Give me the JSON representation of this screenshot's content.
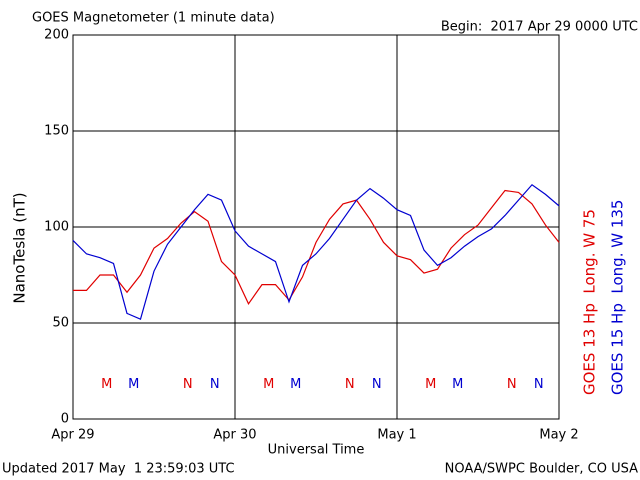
{
  "chart_data": {
    "type": "line",
    "title": "GOES Magnetometer (1 minute data)",
    "subtitle": "Begin:  2017 Apr 29 0000 UTC",
    "y_label": "NanoTesla (nT)",
    "x_label": "Universal Time",
    "footer_left": "Updated 2017 May  1 23:59:03 UTC",
    "footer_right": "NOAA/SWPC Boulder, CO USA",
    "x": [
      0,
      2,
      4,
      6,
      8,
      10,
      12,
      14,
      16,
      18,
      20,
      22,
      24,
      26,
      28,
      30,
      32,
      34,
      36,
      38,
      40,
      42,
      44,
      46,
      48,
      50,
      52,
      54,
      56,
      58,
      60,
      62,
      64,
      66,
      68,
      70,
      72
    ],
    "series": [
      {
        "name": "GOES 13 Hp  Long. W 75",
        "color": "#e00000",
        "values": [
          67,
          67,
          75,
          75,
          66,
          75,
          89,
          94,
          102,
          108,
          103,
          82,
          75,
          60,
          70,
          70,
          62,
          74,
          92,
          104,
          112,
          114,
          104,
          92,
          85,
          83,
          76,
          78,
          89,
          96,
          101,
          110,
          119,
          118,
          112,
          101,
          92
        ]
      },
      {
        "name": "GOES 15 Hp  Long. W 135",
        "color": "#0000d0",
        "values": [
          93,
          86,
          84,
          81,
          55,
          52,
          77,
          91,
          100,
          109,
          117,
          114,
          98,
          90,
          86,
          82,
          61,
          80,
          86,
          94,
          104,
          114,
          120,
          115,
          109,
          106,
          88,
          80,
          84,
          90,
          95,
          99,
          106,
          114,
          122,
          117,
          111
        ]
      }
    ],
    "markers": [
      {
        "text": "M",
        "x": 5,
        "y": 18,
        "series": 0
      },
      {
        "text": "M",
        "x": 9,
        "y": 18,
        "series": 1
      },
      {
        "text": "N",
        "x": 17,
        "y": 18,
        "series": 0
      },
      {
        "text": "N",
        "x": 21,
        "y": 18,
        "series": 1
      },
      {
        "text": "M",
        "x": 29,
        "y": 18,
        "series": 0
      },
      {
        "text": "M",
        "x": 33,
        "y": 18,
        "series": 1
      },
      {
        "text": "N",
        "x": 41,
        "y": 18,
        "series": 0
      },
      {
        "text": "N",
        "x": 45,
        "y": 18,
        "series": 1
      },
      {
        "text": "M",
        "x": 53,
        "y": 18,
        "series": 0
      },
      {
        "text": "M",
        "x": 57,
        "y": 18,
        "series": 1
      },
      {
        "text": "N",
        "x": 65,
        "y": 18,
        "series": 0
      },
      {
        "text": "N",
        "x": 69,
        "y": 18,
        "series": 1
      }
    ],
    "xlim": [
      0,
      72
    ],
    "xticks": [
      {
        "value": 0,
        "label": "Apr 29"
      },
      {
        "value": 24,
        "label": "Apr 30"
      },
      {
        "value": 48,
        "label": "May 1"
      },
      {
        "value": 72,
        "label": "May 2"
      }
    ],
    "ylim": [
      0,
      200
    ],
    "yticks": [
      0,
      50,
      100,
      150,
      200
    ],
    "grid": true
  }
}
